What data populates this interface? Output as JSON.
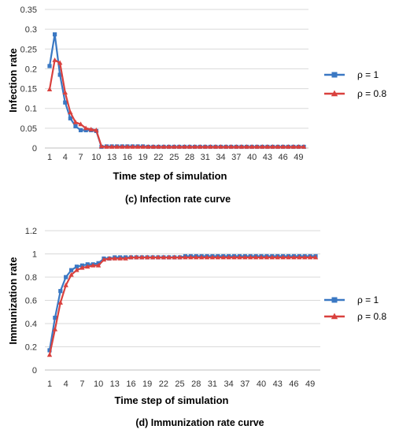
{
  "chart_data": [
    {
      "type": "line",
      "ylabel": "Infection rate",
      "xlabel": "Time step of simulation",
      "caption": "(c) Infection rate curve",
      "ylim": [
        0,
        0.35
      ],
      "yticks": [
        "0",
        "0.05",
        "0.1",
        "0.15",
        "0.2",
        "0.25",
        "0.3",
        "0.35"
      ],
      "yticks_values": [
        0,
        0.05,
        0.1,
        0.15,
        0.2,
        0.25,
        0.3,
        0.35
      ],
      "xticks": [
        1,
        4,
        7,
        10,
        13,
        16,
        19,
        22,
        25,
        28,
        31,
        34,
        37,
        40,
        43,
        46,
        49
      ],
      "x": [
        1,
        2,
        3,
        4,
        5,
        6,
        7,
        8,
        9,
        10,
        11,
        12,
        13,
        14,
        15,
        16,
        17,
        18,
        19,
        20,
        21,
        22,
        23,
        24,
        25,
        26,
        27,
        28,
        29,
        30,
        31,
        32,
        33,
        34,
        35,
        36,
        37,
        38,
        39,
        40,
        41,
        42,
        43,
        44,
        45,
        46,
        47,
        48,
        49,
        50
      ],
      "grid": "horizontal",
      "legend_position": "right",
      "series": [
        {
          "name": "ρ = 1",
          "color": "#3a78c3",
          "marker": "square",
          "values": [
            0.207,
            0.287,
            0.185,
            0.115,
            0.075,
            0.055,
            0.045,
            0.045,
            0.045,
            0.043,
            0.003,
            0.004,
            0.004,
            0.004,
            0.004,
            0.004,
            0.004,
            0.004,
            0.004,
            0.003,
            0.003,
            0.003,
            0.003,
            0.003,
            0.003,
            0.003,
            0.003,
            0.003,
            0.003,
            0.003,
            0.003,
            0.003,
            0.003,
            0.003,
            0.003,
            0.003,
            0.003,
            0.003,
            0.003,
            0.003,
            0.003,
            0.003,
            0.003,
            0.003,
            0.003,
            0.003,
            0.003,
            0.003,
            0.003,
            0.003
          ]
        },
        {
          "name": "ρ = 0.8",
          "color": "#d9413e",
          "marker": "triangle",
          "values": [
            0.148,
            0.222,
            0.215,
            0.14,
            0.09,
            0.065,
            0.06,
            0.05,
            0.047,
            0.045,
            0.004,
            0.003,
            0.003,
            0.003,
            0.003,
            0.003,
            0.003,
            0.003,
            0.003,
            0.003,
            0.003,
            0.003,
            0.003,
            0.003,
            0.003,
            0.003,
            0.003,
            0.003,
            0.003,
            0.003,
            0.003,
            0.003,
            0.003,
            0.003,
            0.003,
            0.003,
            0.003,
            0.003,
            0.003,
            0.003,
            0.003,
            0.003,
            0.003,
            0.003,
            0.003,
            0.003,
            0.003,
            0.003,
            0.003,
            0.003
          ]
        }
      ]
    },
    {
      "type": "line",
      "ylabel": "Immunization rate",
      "xlabel": "Time step of simulation",
      "caption": "(d) Immunization rate curve",
      "ylim": [
        0,
        1.2
      ],
      "yticks": [
        "0",
        "0.2",
        "0.4",
        "0.6",
        "0.8",
        "1",
        "1.2"
      ],
      "yticks_values": [
        0,
        0.2,
        0.4,
        0.6,
        0.8,
        1,
        1.2
      ],
      "xticks": [
        1,
        4,
        7,
        10,
        13,
        16,
        19,
        22,
        25,
        28,
        31,
        34,
        37,
        40,
        43,
        46,
        49
      ],
      "x": [
        1,
        2,
        3,
        4,
        5,
        6,
        7,
        8,
        9,
        10,
        11,
        12,
        13,
        14,
        15,
        16,
        17,
        18,
        19,
        20,
        21,
        22,
        23,
        24,
        25,
        26,
        27,
        28,
        29,
        30,
        31,
        32,
        33,
        34,
        35,
        36,
        37,
        38,
        39,
        40,
        41,
        42,
        43,
        44,
        45,
        46,
        47,
        48,
        49,
        50
      ],
      "grid": "horizontal",
      "legend_position": "right",
      "series": [
        {
          "name": "ρ = 1",
          "color": "#3a78c3",
          "marker": "square",
          "values": [
            0.17,
            0.45,
            0.68,
            0.8,
            0.86,
            0.89,
            0.9,
            0.91,
            0.91,
            0.92,
            0.96,
            0.96,
            0.97,
            0.97,
            0.97,
            0.97,
            0.97,
            0.97,
            0.97,
            0.97,
            0.97,
            0.97,
            0.97,
            0.97,
            0.97,
            0.98,
            0.98,
            0.98,
            0.98,
            0.98,
            0.98,
            0.98,
            0.98,
            0.98,
            0.98,
            0.98,
            0.98,
            0.98,
            0.98,
            0.98,
            0.98,
            0.98,
            0.98,
            0.98,
            0.98,
            0.98,
            0.98,
            0.98,
            0.98,
            0.98
          ]
        },
        {
          "name": "ρ = 0.8",
          "color": "#d9413e",
          "marker": "triangle",
          "values": [
            0.13,
            0.35,
            0.58,
            0.73,
            0.82,
            0.86,
            0.88,
            0.89,
            0.9,
            0.9,
            0.95,
            0.96,
            0.96,
            0.96,
            0.96,
            0.97,
            0.97,
            0.97,
            0.97,
            0.97,
            0.97,
            0.97,
            0.97,
            0.97,
            0.97,
            0.97,
            0.97,
            0.97,
            0.97,
            0.97,
            0.97,
            0.97,
            0.97,
            0.97,
            0.97,
            0.97,
            0.97,
            0.97,
            0.97,
            0.97,
            0.97,
            0.97,
            0.97,
            0.97,
            0.97,
            0.97,
            0.97,
            0.97,
            0.97,
            0.97
          ]
        }
      ]
    }
  ]
}
